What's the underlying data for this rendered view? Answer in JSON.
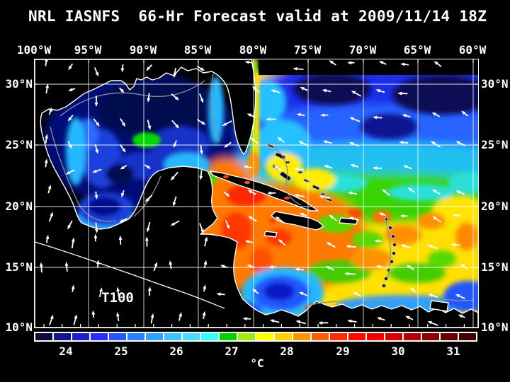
{
  "title": "NRL IASNFS  66-Hr Forecast valid at 2009/11/14 18Z",
  "map": {
    "variable_label": "T100",
    "top_axis": [
      "100°W",
      "95°W",
      "90°W",
      "85°W",
      "80°W",
      "75°W",
      "70°W",
      "65°W",
      "60°W"
    ],
    "left_axis": [
      "30°N",
      "25°N",
      "20°N",
      "15°N",
      "10°N"
    ],
    "right_axis": [
      "30°N",
      "25°N",
      "20°N",
      "15°N",
      "10°N"
    ]
  },
  "colorbar": {
    "unit": "°C",
    "ticks": [
      "24",
      "25",
      "26",
      "27",
      "28",
      "29",
      "30",
      "31"
    ],
    "cell_colors": [
      "#0d0d3d",
      "#13138e",
      "#1e1ecf",
      "#2c2cff",
      "#2458ff",
      "#287eff",
      "#2fa2ff",
      "#3cc1ff",
      "#49dcff",
      "#34ffff",
      "#00d400",
      "#9dec12",
      "#ffff00",
      "#ffcf00",
      "#ff9400",
      "#ff5f00",
      "#ff2b00",
      "#ff0800",
      "#f00000",
      "#d60000",
      "#b40000",
      "#8e0000",
      "#660000",
      "#430000"
    ]
  },
  "colors": {
    "background": "#000000",
    "land": "#000000",
    "coastline": "#ffffff",
    "grid": "#ffffff",
    "bathy_contour": "#909090",
    "wind_arrow": "#ffffff",
    "text": "#ffffff"
  }
}
